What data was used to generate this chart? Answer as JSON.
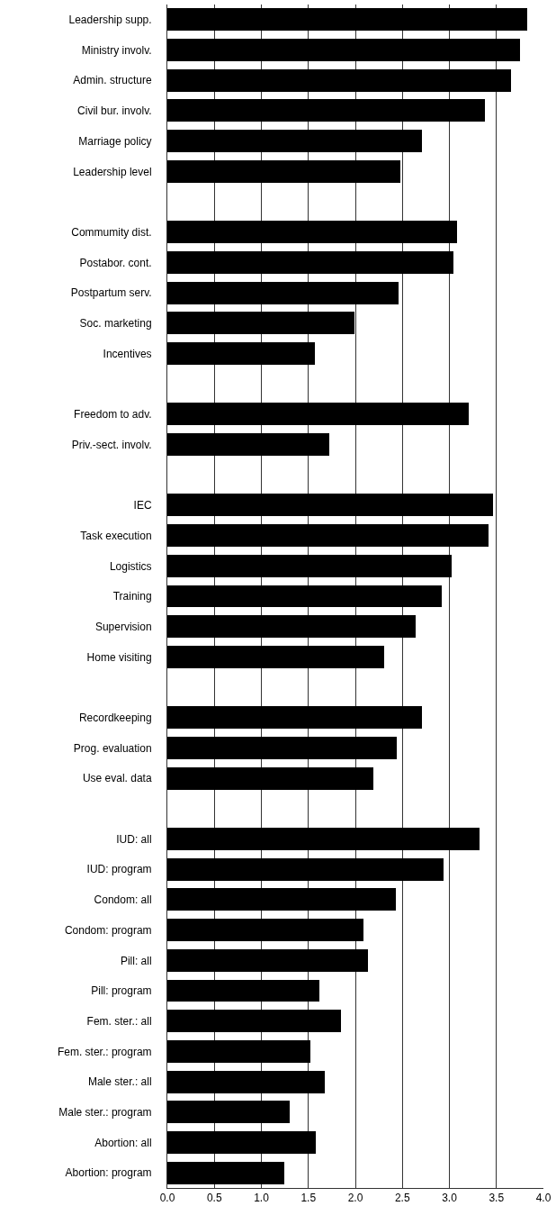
{
  "chart_data": {
    "type": "bar",
    "orientation": "horizontal",
    "categories": [
      "Leadership supp.",
      "Ministry involv.",
      "Admin. structure",
      "Civil bur. involv.",
      "Marriage policy",
      "Leadership level",
      null,
      "Commumity dist.",
      "Postabor. cont.",
      "Postpartum serv.",
      "Soc. marketing",
      "Incentives",
      null,
      "Freedom to adv.",
      "Priv.-sect. involv.",
      null,
      "IEC",
      "Task execution",
      "Logistics",
      "Training",
      "Supervision",
      "Home visiting",
      null,
      "Recordkeeping",
      "Prog. evaluation",
      "Use eval. data",
      null,
      "IUD: all",
      "IUD: program",
      "Condom: all",
      "Condom: program",
      "Pill: all",
      "Pill: program",
      "Fem. ster.: all",
      "Fem. ster.: program",
      "Male ster.: all",
      "Male ster.: program",
      "Abortion: all",
      "Abortion: program"
    ],
    "series": [
      {
        "color": "#000000",
        "values": [
          3.83,
          3.75,
          3.66,
          3.38,
          2.71,
          2.48,
          null,
          3.08,
          3.04,
          2.46,
          1.99,
          1.57,
          null,
          3.21,
          1.72,
          null,
          3.46,
          3.42,
          3.02,
          2.92,
          2.64,
          2.31,
          null,
          2.71,
          2.44,
          2.19,
          null,
          3.32,
          2.94,
          2.43,
          2.09,
          2.13,
          1.62,
          1.85,
          1.52,
          1.67,
          1.3,
          1.58,
          1.24
        ]
      }
    ],
    "xlim": [
      0,
      4
    ],
    "xticks": [
      {
        "value": 0,
        "label": "0.0"
      },
      {
        "value": 0.5,
        "label": "0.5"
      },
      {
        "value": 1,
        "label": "1.0"
      },
      {
        "value": 1.5,
        "label": "1.5"
      },
      {
        "value": 2,
        "label": "2.0"
      },
      {
        "value": 2.5,
        "label": "2.5"
      },
      {
        "value": 3,
        "label": "3.0"
      },
      {
        "value": 3.5,
        "label": "3.5"
      },
      {
        "value": 4,
        "label": "4.0"
      }
    ],
    "grid": "x"
  }
}
